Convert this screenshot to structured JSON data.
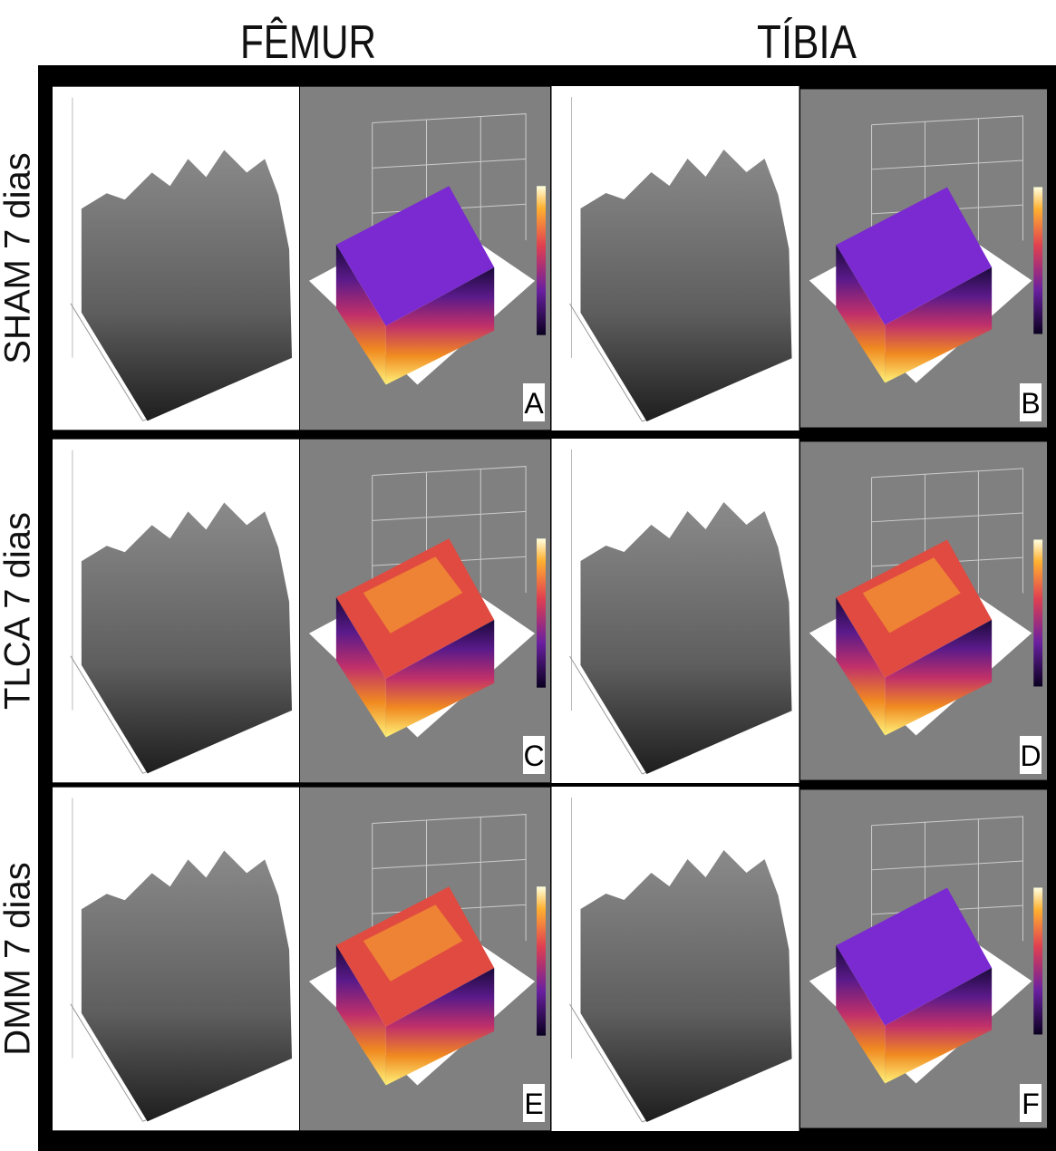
{
  "columns": [
    "FÊMUR",
    "TÍBIA"
  ],
  "rows": [
    {
      "label": "SHAM 7 dias",
      "panels": [
        "A",
        "B"
      ]
    },
    {
      "label": "TLCA 7 dias",
      "panels": [
        "C",
        "D"
      ]
    },
    {
      "label": "DMM 7 dias",
      "panels": [
        "E",
        "F"
      ]
    }
  ]
}
